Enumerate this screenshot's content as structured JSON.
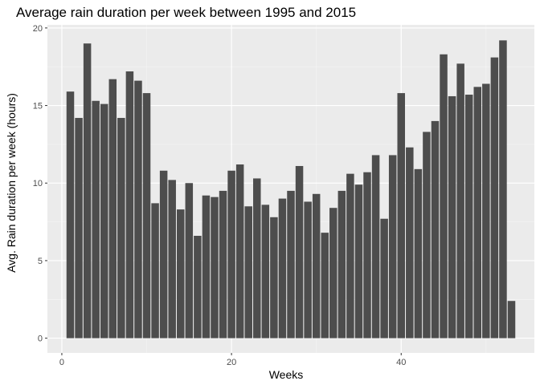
{
  "colors": {
    "panel_background": "#ebebeb",
    "grid_major": "#ffffff",
    "grid_minor": "#f5f5f5",
    "bar_fill": "#4d4d4d",
    "tick_color": "#333333",
    "tick_label": "#4d4d4d"
  },
  "chart_data": {
    "type": "bar",
    "title": "Average rain duration per week between 1995 and 2015",
    "xlabel": "Weeks",
    "ylabel": "Avg. Rain duration per week (hours)",
    "xlim": [
      -1.7,
      55.7
    ],
    "ylim": [
      -0.95,
      20.2
    ],
    "xticks": [
      0,
      20,
      40
    ],
    "yticks": [
      0,
      5,
      10,
      15,
      20
    ],
    "grid": true,
    "x": [
      1,
      2,
      3,
      4,
      5,
      6,
      7,
      8,
      9,
      10,
      11,
      12,
      13,
      14,
      15,
      16,
      17,
      18,
      19,
      20,
      21,
      22,
      23,
      24,
      25,
      26,
      27,
      28,
      29,
      30,
      31,
      32,
      33,
      34,
      35,
      36,
      37,
      38,
      39,
      40,
      41,
      42,
      43,
      44,
      45,
      46,
      47,
      48,
      49,
      50,
      51,
      52,
      53
    ],
    "values": [
      15.9,
      14.2,
      19.0,
      15.3,
      15.1,
      16.7,
      14.2,
      17.2,
      16.6,
      15.8,
      8.7,
      10.8,
      10.2,
      8.3,
      10.0,
      6.6,
      9.2,
      9.1,
      9.5,
      10.8,
      11.2,
      8.5,
      10.3,
      8.6,
      7.8,
      9.0,
      9.5,
      11.1,
      8.8,
      9.3,
      6.8,
      8.4,
      9.5,
      10.6,
      9.9,
      10.7,
      11.8,
      7.7,
      11.8,
      15.8,
      12.3,
      10.9,
      13.3,
      14.0,
      18.3,
      15.6,
      17.7,
      15.7,
      16.2,
      16.4,
      18.1,
      19.2,
      2.4
    ]
  }
}
